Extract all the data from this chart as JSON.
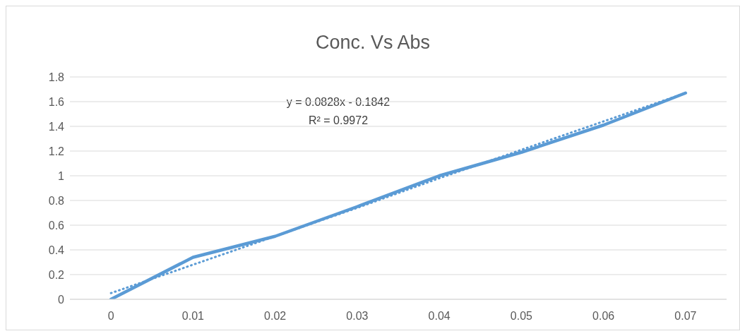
{
  "chart_data": {
    "type": "line",
    "title": "Conc. Vs Abs",
    "categories": [
      "0",
      "0.01",
      "0.02",
      "0.03",
      "0.04",
      "0.05",
      "0.06",
      "0.07"
    ],
    "series": [
      {
        "color": "#5b9bd5",
        "values": [
          0,
          0.34,
          0.51,
          0.75,
          1.0,
          1.19,
          1.41,
          1.67
        ],
        "line_style": "solid"
      },
      {
        "type": "line",
        "color": "#5b9bd5",
        "values": [
          0.05,
          0.28,
          0.51,
          0.74,
          0.98,
          1.21,
          1.44,
          1.67
        ],
        "line_style": "dotted"
      }
    ],
    "ylim": [
      0,
      1.8
    ],
    "yticks": [
      0,
      0.2,
      0.4,
      0.6,
      0.8,
      1,
      1.2,
      1.4,
      1.6,
      1.8
    ],
    "grid": "y",
    "marker": "none",
    "annotations": [
      "y = 0.0828x - 0.1842",
      "R² = 0.9972"
    ]
  }
}
